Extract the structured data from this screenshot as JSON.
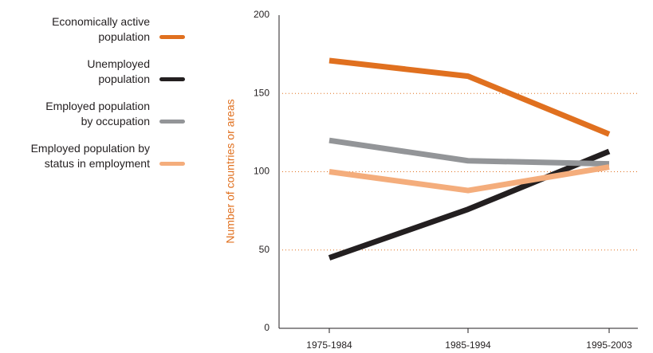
{
  "chart_data": {
    "type": "line",
    "y_label": "Number of countries or areas",
    "categories": [
      "1975-1984",
      "1985-1994",
      "1995-2003"
    ],
    "series": [
      {
        "name": "Economically active\npopulation",
        "color": "#e0701f",
        "values": [
          171,
          161,
          124
        ]
      },
      {
        "name": "Unemployed\npopulation",
        "color": "#231f20",
        "values": [
          45,
          76,
          113
        ]
      },
      {
        "name": "Employed population\nby occupation",
        "color": "#939598",
        "values": [
          120,
          107,
          105
        ]
      },
      {
        "name": "Employed population by\nstatus in employment",
        "color": "#f4ad7c",
        "values": [
          100,
          88,
          103
        ]
      }
    ],
    "ylim": [
      0,
      200
    ],
    "yticks": [
      0,
      50,
      100,
      150,
      200
    ],
    "grid": true
  }
}
